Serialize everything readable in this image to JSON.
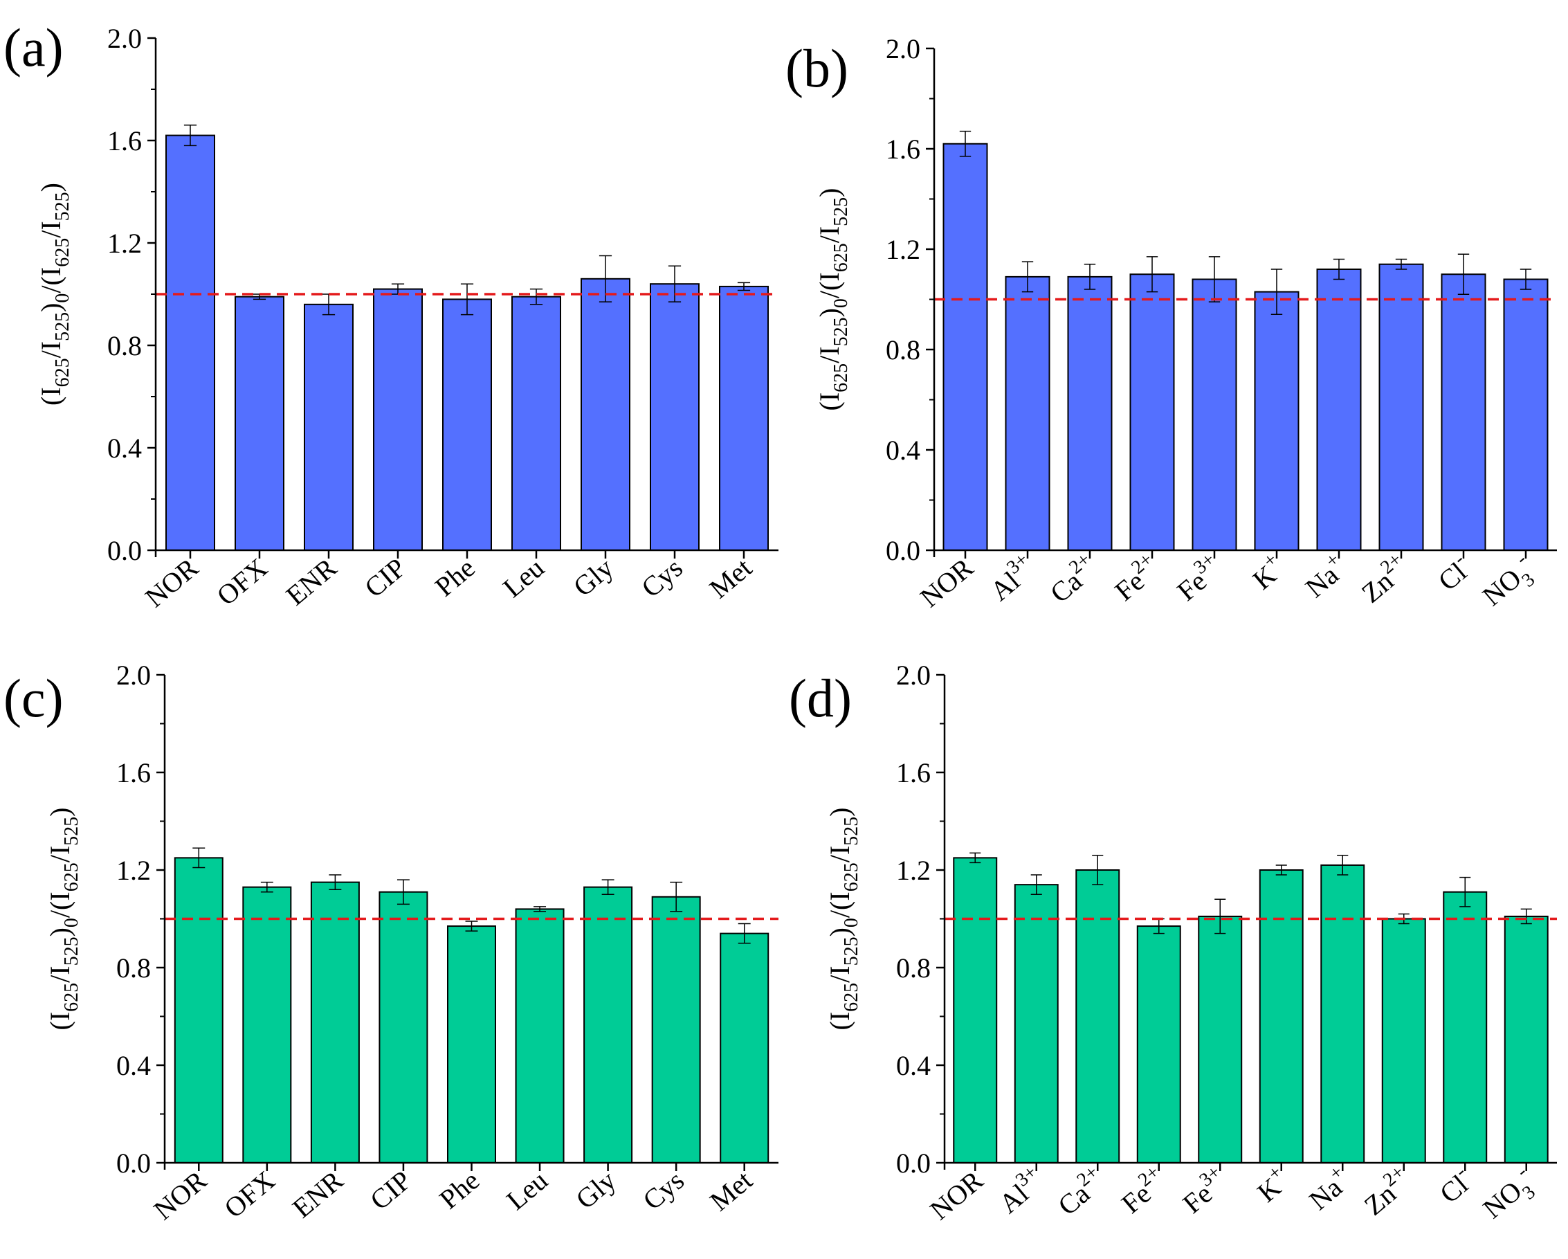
{
  "figure": {
    "ylabel_text": "(I625/I525)0/(I625/I525)"
  },
  "chart_data": [
    {
      "id": "a",
      "panel_label": "(a)",
      "type": "bar",
      "bar_color": "#5470ff",
      "reference_line": 1.0,
      "reference_color": "#e41a1c",
      "ylim": [
        0.0,
        2.0
      ],
      "yticks": [
        "0.0",
        "0.4",
        "0.8",
        "1.2",
        "1.6",
        "2.0"
      ],
      "ylabel": {
        "main_a": "(I",
        "sub_a": "625",
        "main_b": "/I",
        "sub_b": "525",
        "main_c": ")",
        "sub_c": "0",
        "main_d": "/(I",
        "sub_d": "625",
        "main_e": "/I",
        "sub_e": "525",
        "main_f": ")"
      },
      "categories": [
        {
          "base": "NOR"
        },
        {
          "base": "OFX"
        },
        {
          "base": "ENR"
        },
        {
          "base": "CIP"
        },
        {
          "base": "Phe"
        },
        {
          "base": "Leu"
        },
        {
          "base": "Gly"
        },
        {
          "base": "Cys"
        },
        {
          "base": "Met"
        }
      ],
      "values": [
        1.62,
        0.99,
        0.96,
        1.02,
        0.98,
        0.99,
        1.06,
        1.04,
        1.03
      ],
      "errors": [
        0.04,
        0.01,
        0.04,
        0.02,
        0.06,
        0.03,
        0.09,
        0.07,
        0.015
      ]
    },
    {
      "id": "b",
      "panel_label": "(b)",
      "type": "bar",
      "bar_color": "#5470ff",
      "reference_line": 1.0,
      "reference_color": "#e41a1c",
      "ylim": [
        0.0,
        2.0
      ],
      "yticks": [
        "0.0",
        "0.4",
        "0.8",
        "1.2",
        "1.6",
        "2.0"
      ],
      "ylabel": {
        "main_a": "(I",
        "sub_a": "625",
        "main_b": "/I",
        "sub_b": "525",
        "main_c": ")",
        "sub_c": "0",
        "main_d": "/(I",
        "sub_d": "625",
        "main_e": "/I",
        "sub_e": "525",
        "main_f": ")"
      },
      "categories": [
        {
          "base": "NOR"
        },
        {
          "base": "Al",
          "sup": "3+"
        },
        {
          "base": "Ca",
          "sup": "2+"
        },
        {
          "base": "Fe",
          "sup": "2+"
        },
        {
          "base": "Fe",
          "sup": "3+"
        },
        {
          "base": "K",
          "sup": "+"
        },
        {
          "base": "Na",
          "sup": "+"
        },
        {
          "base": "Zn",
          "sup": "2+"
        },
        {
          "base": "Cl",
          "sup": "-"
        },
        {
          "base": "NO",
          "sub": "3",
          "sup": "-"
        }
      ],
      "values": [
        1.62,
        1.09,
        1.09,
        1.1,
        1.08,
        1.03,
        1.12,
        1.14,
        1.1,
        1.08
      ],
      "errors": [
        0.05,
        0.06,
        0.05,
        0.07,
        0.09,
        0.09,
        0.04,
        0.02,
        0.08,
        0.04
      ]
    },
    {
      "id": "c",
      "panel_label": "(c)",
      "type": "bar",
      "bar_color": "#00cc96",
      "reference_line": 1.0,
      "reference_color": "#e41a1c",
      "ylim": [
        0.0,
        2.0
      ],
      "yticks": [
        "0.0",
        "0.4",
        "0.8",
        "1.2",
        "1.6",
        "2.0"
      ],
      "ylabel": {
        "main_a": "(I",
        "sub_a": "625",
        "main_b": "/I",
        "sub_b": "525",
        "main_c": ")",
        "sub_c": "0",
        "main_d": "/(I",
        "sub_d": "625",
        "main_e": "/I",
        "sub_e": "525",
        "main_f": ")"
      },
      "categories": [
        {
          "base": "NOR"
        },
        {
          "base": "OFX"
        },
        {
          "base": "ENR"
        },
        {
          "base": "CIP"
        },
        {
          "base": "Phe"
        },
        {
          "base": "Leu"
        },
        {
          "base": "Gly"
        },
        {
          "base": "Cys"
        },
        {
          "base": "Met"
        }
      ],
      "values": [
        1.25,
        1.13,
        1.15,
        1.11,
        0.97,
        1.04,
        1.13,
        1.09,
        0.94
      ],
      "errors": [
        0.04,
        0.02,
        0.03,
        0.05,
        0.02,
        0.01,
        0.03,
        0.06,
        0.04
      ]
    },
    {
      "id": "d",
      "panel_label": "(d)",
      "type": "bar",
      "bar_color": "#00cc96",
      "reference_line": 1.0,
      "reference_color": "#e41a1c",
      "ylim": [
        0.0,
        2.0
      ],
      "yticks": [
        "0.0",
        "0.4",
        "0.8",
        "1.2",
        "1.6",
        "2.0"
      ],
      "ylabel": {
        "main_a": "(I",
        "sub_a": "625",
        "main_b": "/I",
        "sub_b": "525",
        "main_c": ")",
        "sub_c": "0",
        "main_d": "/(I",
        "sub_d": "625",
        "main_e": "/I",
        "sub_e": "525",
        "main_f": ")"
      },
      "categories": [
        {
          "base": "NOR"
        },
        {
          "base": "Al",
          "sup": "3+"
        },
        {
          "base": "Ca",
          "sup": "2+"
        },
        {
          "base": "Fe",
          "sup": "2+"
        },
        {
          "base": "Fe",
          "sup": "3+"
        },
        {
          "base": "K",
          "sup": "+"
        },
        {
          "base": "Na",
          "sup": "+"
        },
        {
          "base": "Zn",
          "sup": "2+"
        },
        {
          "base": "Cl",
          "sup": "-"
        },
        {
          "base": "NO",
          "sub": "3",
          "sup": "-"
        }
      ],
      "values": [
        1.25,
        1.14,
        1.2,
        0.97,
        1.01,
        1.2,
        1.22,
        1.0,
        1.11,
        1.01
      ],
      "errors": [
        0.02,
        0.04,
        0.06,
        0.03,
        0.07,
        0.02,
        0.04,
        0.02,
        0.06,
        0.03
      ]
    }
  ]
}
